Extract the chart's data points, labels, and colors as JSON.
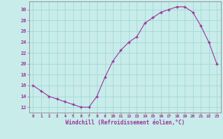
{
  "x": [
    0,
    1,
    2,
    3,
    4,
    5,
    6,
    7,
    8,
    9,
    10,
    11,
    12,
    13,
    14,
    15,
    16,
    17,
    18,
    19,
    20,
    21,
    22,
    23
  ],
  "y": [
    16,
    15,
    14,
    13.5,
    13,
    12.5,
    12,
    12,
    14,
    17.5,
    20.5,
    22.5,
    24,
    25,
    27.5,
    28.5,
    29.5,
    30,
    30.5,
    30.5,
    29.5,
    27,
    24,
    20
  ],
  "line_color": "#993399",
  "marker": "+",
  "marker_size": 3.5,
  "marker_lw": 1.0,
  "line_width": 0.8,
  "bg_color": "#c8ecea",
  "grid_color": "#a0d8d8",
  "xlabel": "Windchill (Refroidissement éolien,°C)",
  "xlabel_color": "#993399",
  "ylabel_ticks": [
    12,
    14,
    16,
    18,
    20,
    22,
    24,
    26,
    28,
    30
  ],
  "xlim": [
    -0.5,
    23.5
  ],
  "ylim": [
    11.0,
    31.5
  ],
  "tick_label_color": "#993399",
  "spine_color": "#888888",
  "xlabel_fontsize": 5.5,
  "ytick_fontsize": 5.0,
  "xtick_fontsize": 4.5
}
